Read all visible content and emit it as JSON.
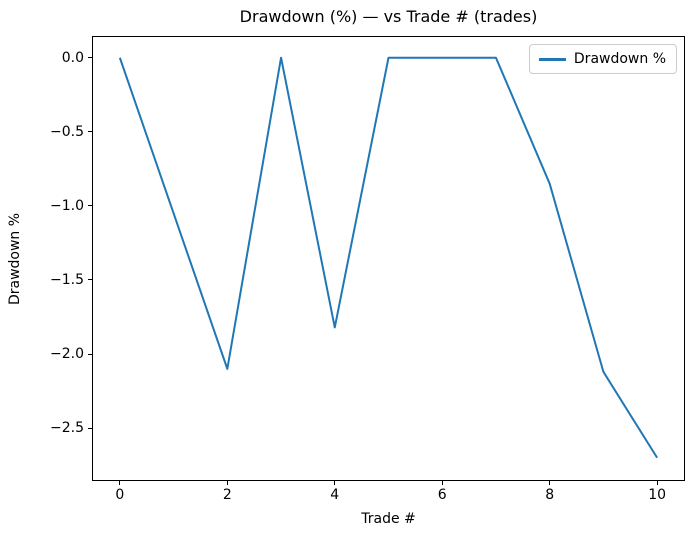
{
  "chart_data": {
    "type": "line",
    "title": "Drawdown (%) — vs Trade # (trades)",
    "xlabel": "Trade #",
    "ylabel": "Drawdown %",
    "x": [
      0,
      1,
      2,
      3,
      4,
      5,
      6,
      7,
      8,
      9,
      10
    ],
    "series": [
      {
        "name": "Drawdown %",
        "color": "#1f77b4",
        "values": [
          0.0,
          -1.05,
          -2.1,
          0.0,
          -1.82,
          0.0,
          0.0,
          0.0,
          -0.85,
          -2.12,
          -2.7
        ]
      }
    ],
    "xlim": [
      -0.5,
      10.5
    ],
    "ylim": [
      -2.85,
      0.14
    ],
    "xticks": {
      "values": [
        0,
        2,
        4,
        6,
        8,
        10
      ],
      "labels": [
        "0",
        "2",
        "4",
        "6",
        "8",
        "10"
      ]
    },
    "yticks": {
      "values": [
        0,
        -0.5,
        -1.0,
        -1.5,
        -2.0,
        -2.5
      ],
      "labels": [
        "0.0",
        "−0.5",
        "−1.0",
        "−1.5",
        "−2.0",
        "−2.5"
      ]
    },
    "grid": false,
    "legend_position": "upper right",
    "background_color": "#ffffff",
    "spine_color": "#000000"
  }
}
